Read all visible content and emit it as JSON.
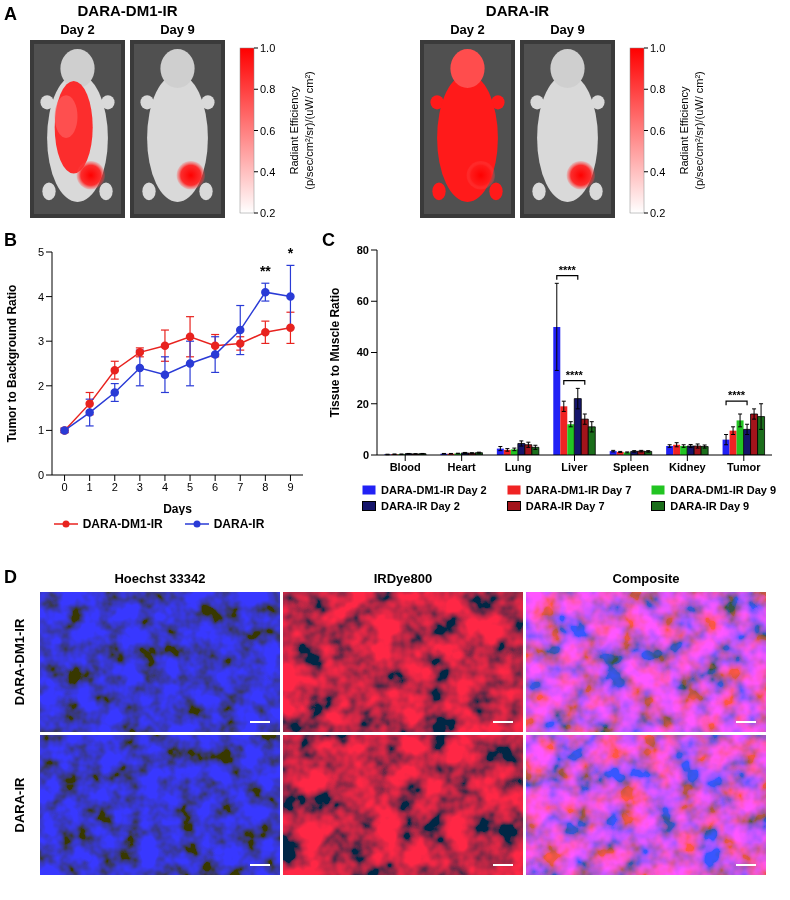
{
  "panel_A": {
    "letter": "A",
    "groups": [
      {
        "title": "DARA-DM1-IR",
        "images": [
          "Day 2",
          "Day 9"
        ]
      },
      {
        "title": "DARA-IR",
        "images": [
          "Day 2",
          "Day 9"
        ]
      }
    ],
    "colorbar": {
      "label": "Radiant Efficiency (p/sec/cm²/sr)/(uW/ cm²)",
      "range": [
        0.2,
        1
      ],
      "ticks": [
        0.2,
        0.4,
        0.6,
        0.8,
        {
          "value": 1,
          "label": "1.0"
        }
      ],
      "colors": [
        "#ffffff",
        "#ff0000"
      ]
    }
  },
  "chart_data": [
    {
      "panel": "B",
      "type": "line",
      "x_label": "Days",
      "y_label": "Tumor to Background Ratio",
      "x": [
        0,
        1,
        2,
        3,
        4,
        5,
        6,
        7,
        8,
        9
      ],
      "xlim": [
        -0.5,
        9.5
      ],
      "xticks": [
        0,
        1,
        2,
        3,
        4,
        5,
        6,
        7,
        8,
        9
      ],
      "ylim": [
        0,
        5
      ],
      "yticks": [
        0,
        1,
        2,
        3,
        4,
        5
      ],
      "grid": false,
      "legend": "bottom",
      "series": [
        {
          "name": "DARA-DM1-IR",
          "color": "#e8231f",
          "marker": "circle",
          "values": [
            1.0,
            1.6,
            2.35,
            2.75,
            2.9,
            3.1,
            2.9,
            2.95,
            3.2,
            3.3
          ],
          "errors": [
            0.05,
            0.25,
            0.2,
            0.1,
            0.35,
            0.45,
            0.25,
            0.15,
            0.25,
            0.35
          ]
        },
        {
          "name": "DARA-IR",
          "color": "#2a3bd6",
          "marker": "circle",
          "values": [
            1.0,
            1.4,
            1.85,
            2.4,
            2.25,
            2.5,
            2.7,
            3.25,
            4.1,
            4.0
          ],
          "errors": [
            0.05,
            0.3,
            0.2,
            0.4,
            0.4,
            0.5,
            0.4,
            0.55,
            0.2,
            0.7
          ]
        }
      ],
      "annotations": [
        {
          "x": 8,
          "y": 4.35,
          "text": "**"
        },
        {
          "x": 9,
          "y": 4.75,
          "text": "*"
        }
      ]
    },
    {
      "panel": "C",
      "type": "bar",
      "y_label": "Tissue to Muscle Ratio",
      "categories": [
        "Blood",
        "Heart",
        "Lung",
        "Liver",
        "Spleen",
        "Kidney",
        "Tumor"
      ],
      "ylim": [
        0,
        80
      ],
      "yticks": [
        0,
        20,
        40,
        60,
        80
      ],
      "grid": false,
      "legend": "bottom",
      "series": [
        {
          "name": "DARA-DM1-IR Day 2",
          "color": "#2121f5",
          "values": [
            0.2,
            0.5,
            2.5,
            50,
            1.5,
            3.5,
            6
          ],
          "errors": [
            0.1,
            0.1,
            0.8,
            17,
            0.3,
            0.5,
            2
          ]
        },
        {
          "name": "DARA-DM1-IR Day 7",
          "color": "#f02323",
          "values": [
            0.3,
            0.5,
            2.0,
            19,
            1.2,
            4.0,
            9.5
          ],
          "errors": [
            0.1,
            0.1,
            0.5,
            2,
            0.2,
            0.8,
            1.5
          ]
        },
        {
          "name": "DARA-DM1-IR Day 9",
          "color": "#22c422",
          "values": [
            0.3,
            0.6,
            2.2,
            12,
            1.0,
            3.5,
            13.5
          ],
          "errors": [
            0.1,
            0.1,
            0.5,
            1,
            0.2,
            0.5,
            2.5
          ]
        },
        {
          "name": "DARA-IR Day 2",
          "color": "#15156b",
          "values": [
            0.5,
            0.8,
            4.5,
            22,
            1.4,
            3.5,
            10
          ],
          "errors": [
            0.1,
            0.2,
            1,
            4,
            0.3,
            0.6,
            2
          ]
        },
        {
          "name": "DARA-IR Day 7",
          "color": "#a3141b",
          "values": [
            0.4,
            0.7,
            4.0,
            14,
            1.5,
            3.5,
            16
          ],
          "errors": [
            0.1,
            0.2,
            1,
            2,
            0.3,
            0.8,
            2
          ]
        },
        {
          "name": "DARA-IR Day 9",
          "color": "#1b6e1b",
          "values": [
            0.5,
            0.9,
            3.0,
            11,
            1.4,
            3.3,
            15
          ],
          "errors": [
            0.1,
            0.2,
            0.8,
            2,
            0.3,
            0.6,
            5
          ]
        }
      ],
      "annotations": [
        {
          "category": "Liver",
          "from": "DARA-DM1-IR Day 2",
          "to": "DARA-IR Day 2",
          "y": 70,
          "text": "****"
        },
        {
          "category": "Liver",
          "from": "DARA-DM1-IR Day 7",
          "to": "DARA-IR Day 7",
          "y": 29,
          "text": "****"
        },
        {
          "category": "Tumor",
          "from": "DARA-DM1-IR Day 2",
          "to": "DARA-IR Day 2",
          "y": 21,
          "text": "****"
        }
      ]
    }
  ],
  "panel_D": {
    "letter": "D",
    "columns": [
      "Hoechst 33342",
      "IRDye800",
      "Composite"
    ],
    "rows": [
      "DARA-DM1-IR",
      "DARA-IR"
    ]
  }
}
